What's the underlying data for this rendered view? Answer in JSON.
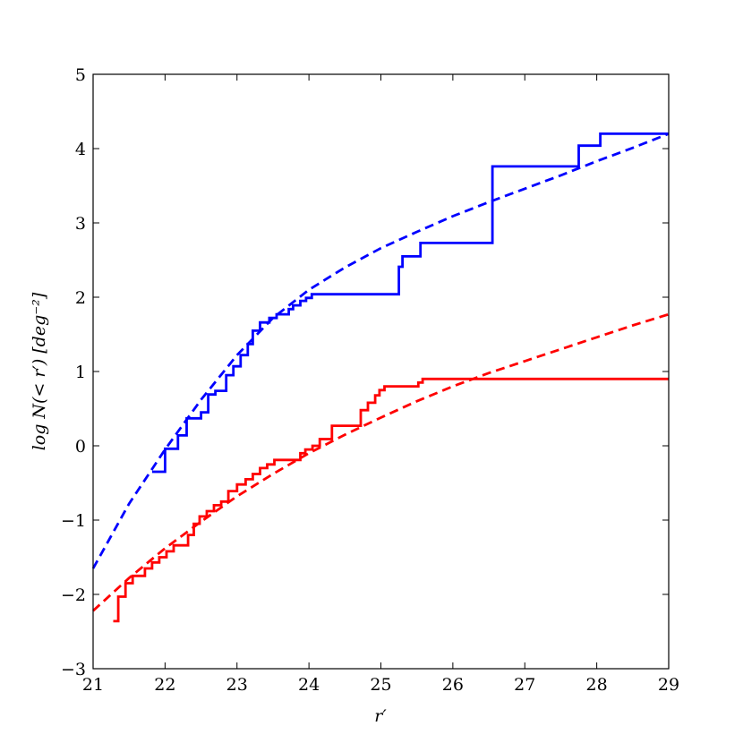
{
  "chart_data": {
    "type": "line",
    "xlabel": "r′",
    "ylabel": "log N(< r′) [deg⁻²]",
    "xlim": [
      21,
      29
    ],
    "ylim": [
      -3,
      5
    ],
    "xticks": [
      "21",
      "22",
      "23",
      "24",
      "25",
      "26",
      "27",
      "28",
      "29"
    ],
    "yticks": [
      "−3",
      "−2",
      "−1",
      "0",
      "1",
      "2",
      "3",
      "4",
      "5"
    ],
    "grid": false,
    "legend": "none",
    "series": [
      {
        "color": "#0000ff",
        "style": "steps-solid",
        "x": [
          21.82,
          22.0,
          22.0,
          22.18,
          22.18,
          22.3,
          22.3,
          22.5,
          22.5,
          22.6,
          22.6,
          22.7,
          22.7,
          22.85,
          22.85,
          22.95,
          22.95,
          23.05,
          23.05,
          23.15,
          23.15,
          23.22,
          23.22,
          23.32,
          23.32,
          23.45,
          23.45,
          23.55,
          23.55,
          23.72,
          23.72,
          23.78,
          23.78,
          23.88,
          23.88,
          23.96,
          23.96,
          24.04,
          24.04,
          24.12,
          24.12,
          25.25,
          25.25,
          25.3,
          25.3,
          25.38,
          25.38,
          25.55,
          25.55,
          26.55,
          26.55,
          27.75,
          27.75,
          28.05,
          28.05,
          29.0
        ],
        "y": [
          -0.35,
          -0.35,
          -0.04,
          -0.04,
          0.14,
          0.14,
          0.37,
          0.37,
          0.45,
          0.45,
          0.69,
          0.69,
          0.74,
          0.74,
          0.95,
          0.95,
          1.07,
          1.07,
          1.22,
          1.22,
          1.37,
          1.37,
          1.55,
          1.55,
          1.66,
          1.66,
          1.72,
          1.72,
          1.77,
          1.77,
          1.84,
          1.84,
          1.89,
          1.89,
          1.95,
          1.95,
          1.99,
          1.99,
          2.04,
          2.04,
          2.04,
          2.04,
          2.41,
          2.41,
          2.55,
          2.55,
          2.55,
          2.55,
          2.73,
          2.73,
          3.76,
          3.76,
          4.04,
          4.04,
          4.2,
          4.2
        ]
      },
      {
        "color": "#0000ff",
        "style": "dashed",
        "x": [
          21.0,
          21.5,
          22.0,
          22.5,
          23.0,
          23.5,
          24.0,
          24.5,
          25.0,
          25.5,
          26.0,
          26.5,
          27.0,
          27.5,
          28.0,
          28.5,
          29.0
        ],
        "y": [
          -1.65,
          -0.78,
          -0.05,
          0.62,
          1.22,
          1.72,
          2.1,
          2.4,
          2.66,
          2.88,
          3.09,
          3.28,
          3.46,
          3.64,
          3.83,
          4.01,
          4.2
        ]
      },
      {
        "color": "#ff0000",
        "style": "steps-solid",
        "x": [
          21.28,
          21.35,
          21.35,
          21.45,
          21.45,
          21.55,
          21.55,
          21.72,
          21.72,
          21.82,
          21.82,
          21.92,
          21.92,
          22.02,
          22.02,
          22.12,
          22.12,
          22.32,
          22.32,
          22.4,
          22.4,
          22.48,
          22.48,
          22.58,
          22.58,
          22.68,
          22.68,
          22.78,
          22.78,
          22.88,
          22.88,
          23.0,
          23.0,
          23.12,
          23.12,
          23.22,
          23.22,
          23.32,
          23.32,
          23.42,
          23.42,
          23.52,
          23.52,
          23.62,
          23.62,
          23.88,
          23.88,
          23.95,
          23.95,
          24.05,
          24.05,
          24.15,
          24.15,
          24.32,
          24.32,
          24.72,
          24.72,
          24.82,
          24.82,
          24.92,
          24.92,
          24.98,
          24.98,
          25.05,
          25.05,
          25.12,
          25.12,
          25.52,
          25.52,
          25.58,
          25.58,
          29.0
        ],
        "y": [
          -2.36,
          -2.36,
          -2.03,
          -2.03,
          -1.85,
          -1.85,
          -1.75,
          -1.75,
          -1.65,
          -1.65,
          -1.57,
          -1.57,
          -1.5,
          -1.5,
          -1.42,
          -1.42,
          -1.34,
          -1.34,
          -1.2,
          -1.2,
          -1.05,
          -1.05,
          -0.95,
          -0.95,
          -0.88,
          -0.88,
          -0.8,
          -0.8,
          -0.75,
          -0.75,
          -0.61,
          -0.61,
          -0.52,
          -0.52,
          -0.45,
          -0.45,
          -0.38,
          -0.38,
          -0.3,
          -0.3,
          -0.25,
          -0.25,
          -0.19,
          -0.19,
          -0.19,
          -0.19,
          -0.1,
          -0.1,
          -0.05,
          -0.05,
          0.0,
          0.0,
          0.09,
          0.09,
          0.27,
          0.27,
          0.48,
          0.48,
          0.58,
          0.58,
          0.68,
          0.68,
          0.75,
          0.75,
          0.8,
          0.8,
          0.8,
          0.8,
          0.85,
          0.85,
          0.9,
          0.9
        ]
      },
      {
        "color": "#ff0000",
        "style": "dashed",
        "x": [
          21.0,
          21.5,
          22.0,
          22.5,
          23.0,
          23.5,
          24.0,
          24.5,
          25.0,
          25.5,
          26.0,
          26.5,
          27.0,
          27.5,
          28.0,
          28.5,
          29.0
        ],
        "y": [
          -2.22,
          -1.78,
          -1.38,
          -1.02,
          -0.68,
          -0.38,
          -0.1,
          0.15,
          0.38,
          0.6,
          0.8,
          0.98,
          1.14,
          1.3,
          1.46,
          1.62,
          1.77
        ]
      }
    ]
  }
}
